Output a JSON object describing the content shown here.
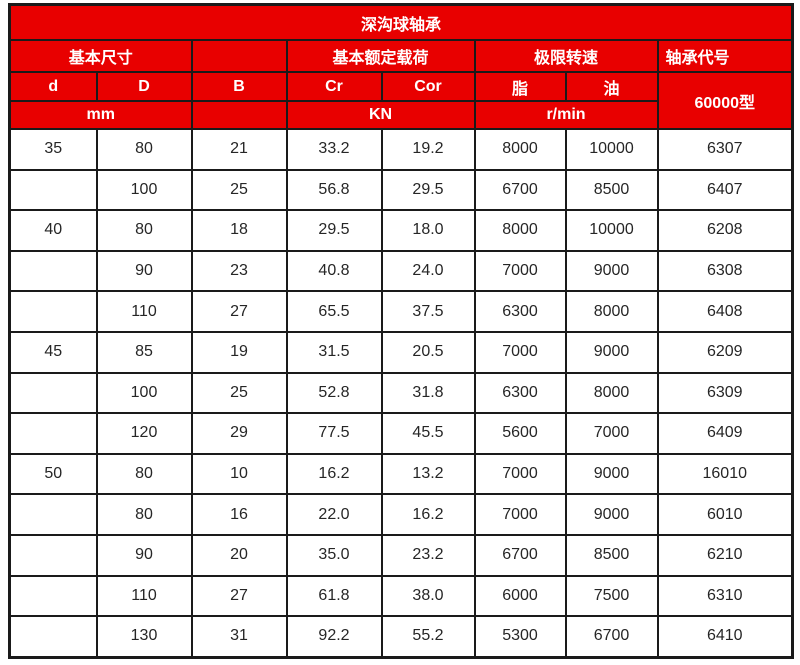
{
  "table": {
    "title": "深沟球轴承",
    "groups": {
      "basic_size": "基本尺寸",
      "blank": "",
      "rated_load": "基本额定载荷",
      "limit_speed": "极限转速",
      "bearing_code": "轴承代号"
    },
    "columns": [
      "d",
      "D",
      "B",
      "Cr",
      "Cor",
      "脂",
      "油"
    ],
    "code_type": "60000型",
    "units": {
      "size": "mm",
      "blank": "",
      "load": "KN",
      "speed": "r/min"
    },
    "rows": [
      [
        "35",
        "80",
        "21",
        "33.2",
        "19.2",
        "8000",
        "10000",
        "6307"
      ],
      [
        "",
        "100",
        "25",
        "56.8",
        "29.5",
        "6700",
        "8500",
        "6407"
      ],
      [
        "40",
        "80",
        "18",
        "29.5",
        "18.0",
        "8000",
        "10000",
        "6208"
      ],
      [
        "",
        "90",
        "23",
        "40.8",
        "24.0",
        "7000",
        "9000",
        "6308"
      ],
      [
        "",
        "110",
        "27",
        "65.5",
        "37.5",
        "6300",
        "8000",
        "6408"
      ],
      [
        "45",
        "85",
        "19",
        "31.5",
        "20.5",
        "7000",
        "9000",
        "6209"
      ],
      [
        "",
        "100",
        "25",
        "52.8",
        "31.8",
        "6300",
        "8000",
        "6309"
      ],
      [
        "",
        "120",
        "29",
        "77.5",
        "45.5",
        "5600",
        "7000",
        "6409"
      ],
      [
        "50",
        "80",
        "10",
        "16.2",
        "13.2",
        "7000",
        "9000",
        "16010"
      ],
      [
        "",
        "80",
        "16",
        "22.0",
        "16.2",
        "7000",
        "9000",
        "6010"
      ],
      [
        "",
        "90",
        "20",
        "35.0",
        "23.2",
        "6700",
        "8500",
        "6210"
      ],
      [
        "",
        "110",
        "27",
        "61.8",
        "38.0",
        "6000",
        "7500",
        "6310"
      ],
      [
        "",
        "130",
        "31",
        "92.2",
        "55.2",
        "5300",
        "6700",
        "6410"
      ]
    ]
  },
  "colors": {
    "header_bg": "#e80000",
    "header_text": "#ffffff",
    "border": "#1a1a1a",
    "body_text": "#262626"
  }
}
